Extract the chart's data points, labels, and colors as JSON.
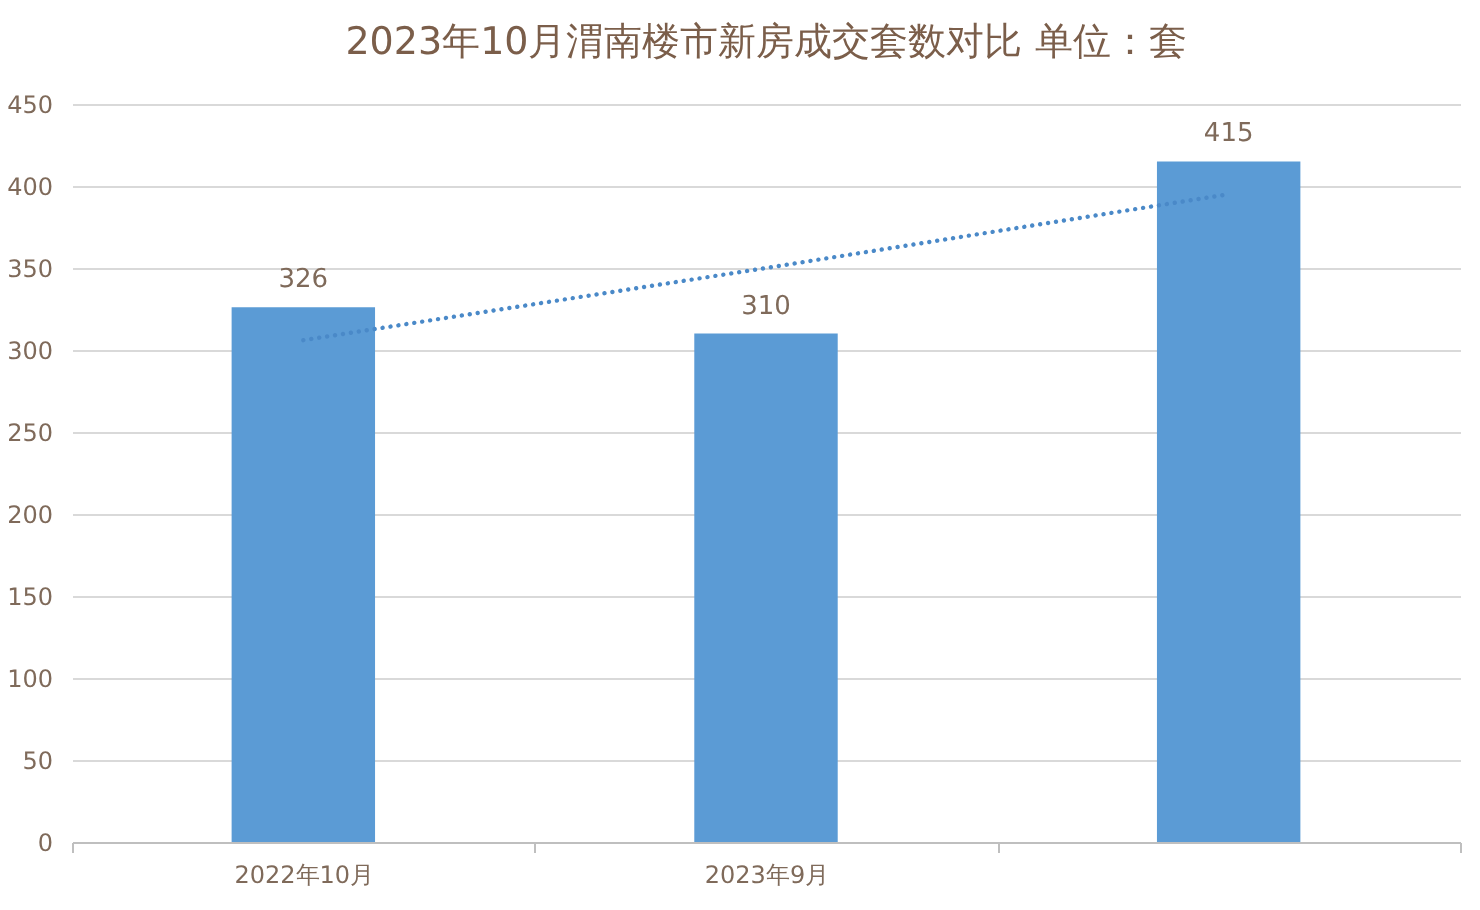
{
  "chart_data": {
    "type": "bar",
    "title": "2023年10月渭南楼市新房成交套数对比 单位：套",
    "categories": [
      "2022年10月",
      "2023年9月",
      null
    ],
    "series": [
      {
        "color": "#5b9bd5",
        "values": [
          326,
          310,
          415
        ],
        "value_labels": [
          "326",
          "310",
          "415"
        ]
      },
      {
        "type": "line",
        "color": "#4a89c8",
        "values": [
          306,
          350,
          395
        ],
        "line_style": "dotted"
      }
    ],
    "ylim": [
      0,
      450
    ],
    "yticks": [
      0,
      50,
      100,
      150,
      200,
      250,
      300,
      350,
      400,
      450
    ],
    "grid": "y"
  }
}
